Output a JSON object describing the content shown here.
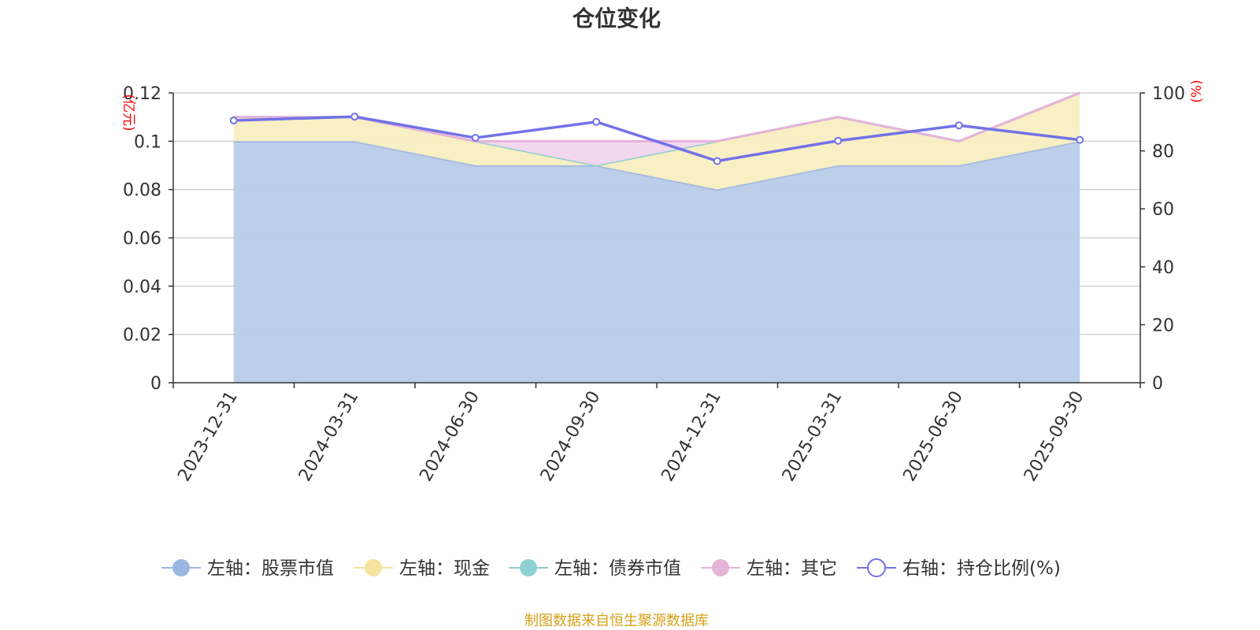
{
  "chart_data": {
    "type": "area",
    "title": "仓位变化",
    "categories": [
      "2023-12-31",
      "2024-03-31",
      "2024-06-30",
      "2024-09-30",
      "2024-12-31",
      "2025-03-31",
      "2025-06-30",
      "2025-09-30"
    ],
    "left_axis": {
      "unit": "(亿元)",
      "ylim": [
        0,
        0.12
      ],
      "ticks": [
        "0",
        "0.02",
        "0.04",
        "0.06",
        "0.08",
        "0.1",
        "0.12"
      ]
    },
    "right_axis": {
      "unit": "(%)",
      "ylim": [
        0,
        100
      ],
      "ticks": [
        "0",
        "20",
        "40",
        "60",
        "80",
        "100"
      ]
    },
    "series": [
      {
        "name": "左轴：股票市值",
        "axis": "left",
        "kind": "stacked-area",
        "color": "#9bb6e0",
        "fill": "#b8cce9",
        "values": [
          0.1,
          0.1,
          0.09,
          0.09,
          0.08,
          0.09,
          0.09,
          0.1
        ]
      },
      {
        "name": "左轴：现金",
        "axis": "left",
        "kind": "stacked-area",
        "color": "#f5e3a0",
        "fill": "#f9eec2",
        "values": [
          0.01,
          0.01,
          0.01,
          0.0,
          0.02,
          0.02,
          0.01,
          0.02
        ]
      },
      {
        "name": "左轴：债券市值",
        "axis": "left",
        "kind": "stacked-area",
        "color": "#8fd0d0",
        "fill": "#b9e4e4",
        "values": [
          0,
          0,
          0,
          0,
          0,
          0,
          0,
          0
        ]
      },
      {
        "name": "左轴：其它",
        "axis": "left",
        "kind": "stacked-area",
        "color": "#e6b3d9",
        "fill": "#f2d6ec",
        "values": [
          0,
          0,
          0,
          0.01,
          0,
          0,
          0,
          0
        ]
      },
      {
        "name": "右轴：持仓比例(%)",
        "axis": "right",
        "kind": "line",
        "color": "#7272e8",
        "values": [
          90.5,
          91.8,
          84.5,
          90.0,
          76.5,
          83.5,
          88.8,
          83.8
        ]
      }
    ],
    "legend_position": "bottom",
    "grid": true
  },
  "source_note": "制图数据来自恒生聚源数据库"
}
